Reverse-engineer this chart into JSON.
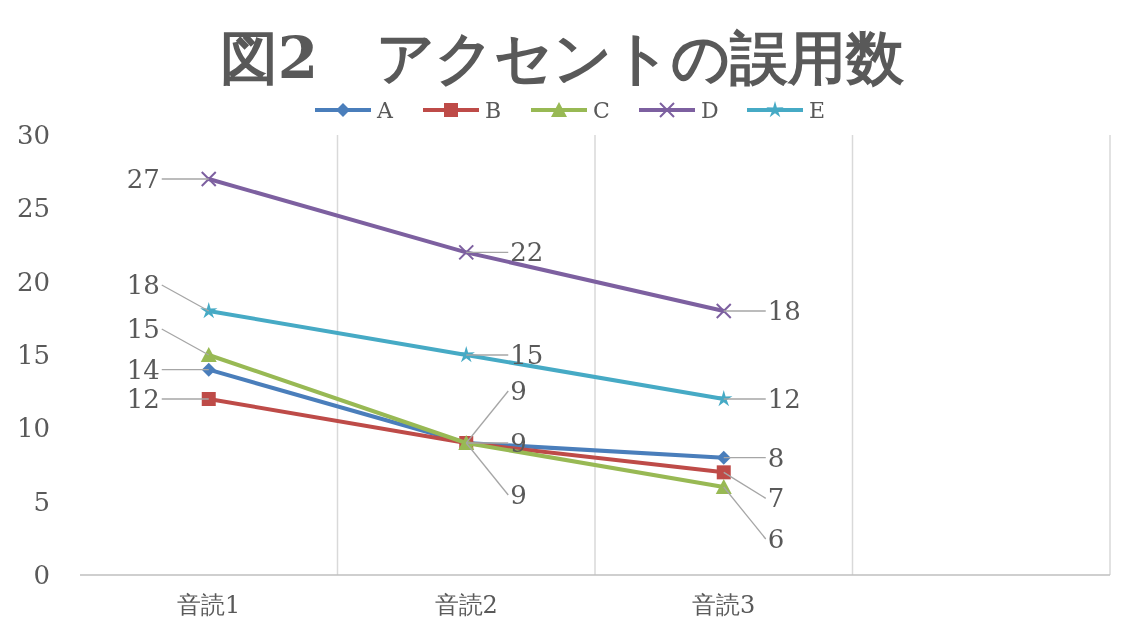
{
  "chart_data": {
    "type": "line",
    "title": "図2　アクセントの誤用数",
    "categories": [
      "音読1",
      "音読2",
      "音読3",
      null
    ],
    "series": [
      {
        "name": "A",
        "color": "#4a7ebb",
        "marker": "diamond",
        "values": [
          14,
          9,
          8,
          null
        ]
      },
      {
        "name": "B",
        "color": "#be4b48",
        "marker": "square",
        "values": [
          12,
          9,
          7,
          null
        ]
      },
      {
        "name": "C",
        "color": "#98b954",
        "marker": "triangle",
        "values": [
          15,
          9,
          6,
          null
        ]
      },
      {
        "name": "D",
        "color": "#7d60a0",
        "marker": "cross",
        "values": [
          27,
          22,
          18,
          null
        ]
      },
      {
        "name": "E",
        "color": "#46aac5",
        "marker": "star",
        "values": [
          18,
          15,
          12,
          null
        ]
      }
    ],
    "ylim": [
      0,
      30
    ],
    "yticks": [
      0,
      5,
      10,
      15,
      20,
      25,
      30
    ],
    "grid": "x",
    "legend": "top",
    "data_labels": true
  }
}
